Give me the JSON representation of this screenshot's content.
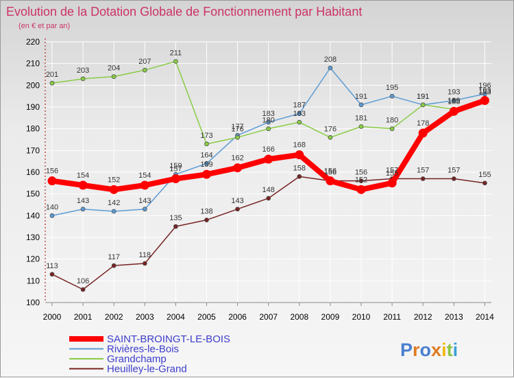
{
  "title": "Evolution de la Dotation Globale de Fonctionnement par Habitant",
  "subtitle": "(en € et par an)",
  "logo_text": "Proxiti",
  "colors": {
    "title": "#cc3366",
    "legend_text": "#3d3dcc",
    "grid": "#ffffff",
    "axis": "#aa0000"
  },
  "chart_data": {
    "type": "line",
    "title": "Evolution de la Dotation Globale de Fonctionnement par Habitant",
    "subtitle": "(en € et par an)",
    "xlabel": "",
    "ylabel": "",
    "ylim": [
      100,
      220
    ],
    "yticks": [
      100,
      110,
      120,
      130,
      140,
      150,
      160,
      170,
      180,
      190,
      200,
      210,
      220
    ],
    "grid": true,
    "legend_position": "bottom-left",
    "x": [
      "2000",
      "2001",
      "2002",
      "2003",
      "2004",
      "2005",
      "2006",
      "2007",
      "2008",
      "2009",
      "2010",
      "2011",
      "2012",
      "2013",
      "2014"
    ],
    "series": [
      {
        "name": "Rivières-le-Bois",
        "color": "#5b9bd5",
        "values": [
          140,
          143,
          142,
          143,
          159,
          164,
          177,
          183,
          187,
          208,
          191,
          195,
          191,
          193,
          196
        ],
        "labels": [
          "140",
          "143",
          "142",
          "143",
          "159",
          "164",
          "177",
          "183",
          "187",
          "208",
          "191",
          "195",
          "191",
          "193",
          "196"
        ]
      },
      {
        "name": "Grandchamp",
        "color": "#88cc44",
        "values": [
          201,
          203,
          204,
          207,
          211,
          173,
          176,
          180,
          183,
          176,
          181,
          180,
          191,
          189,
          193
        ],
        "labels": [
          "201",
          "203",
          "204",
          "207",
          "211",
          "173",
          "176",
          "180",
          "183",
          "176",
          "181",
          "180",
          "191",
          "189",
          "193"
        ]
      },
      {
        "name": "Heuilley-le-Grand",
        "color": "#772222",
        "values": [
          113,
          106,
          117,
          118,
          135,
          138,
          143,
          148,
          158,
          156,
          156,
          157,
          157,
          157,
          155
        ],
        "labels": [
          "113",
          "106",
          "117",
          "118",
          "135",
          "138",
          "143",
          "148",
          "158",
          "156",
          "156",
          "157",
          "157",
          "157",
          "155"
        ]
      },
      {
        "name": "SAINT-BROINGT-LE-BOIS",
        "color": "#ff0000",
        "values": [
          156,
          154,
          152,
          154,
          157,
          159,
          162,
          166,
          168,
          156,
          152,
          155,
          178,
          188,
          193
        ],
        "labels": [
          "156",
          "154",
          "152",
          "154",
          "157",
          "159",
          "162",
          "166",
          "168",
          "156",
          "152",
          "155",
          "178",
          "188",
          "193"
        ]
      }
    ]
  }
}
